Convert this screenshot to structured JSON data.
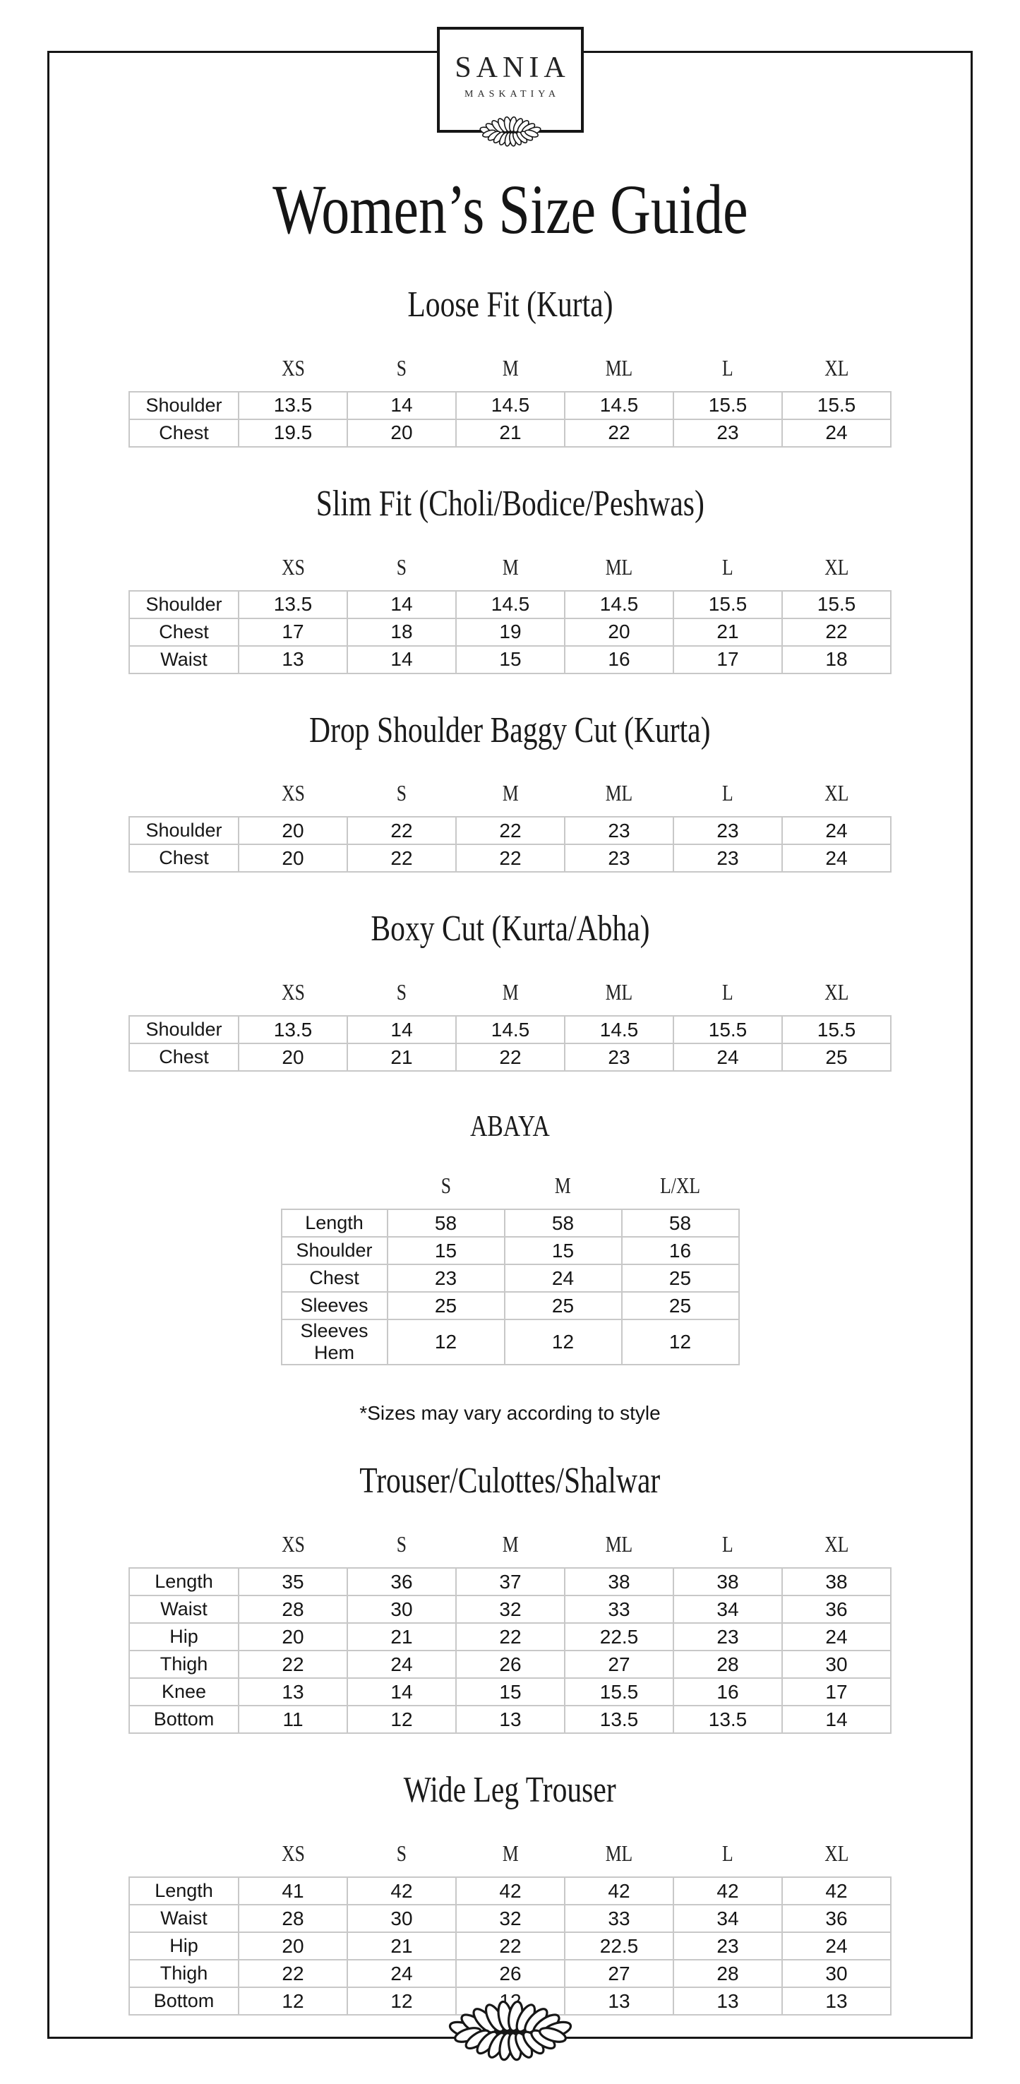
{
  "brand": {
    "name": "SANIA",
    "subname": "MASKATIYA"
  },
  "page_title": "Women’s Size Guide",
  "note": "*Sizes may vary according to style",
  "icons": {
    "logo_ornament": "laurel-leaves-ornament",
    "footer_ornament": "laurel-leaves-ornament"
  },
  "sections": [
    {
      "title": "Loose Fit (Kurta)",
      "sizes": [
        "XS",
        "S",
        "M",
        "ML",
        "L",
        "XL"
      ],
      "rows": [
        {
          "label": "Shoulder",
          "values": [
            "13.5",
            "14",
            "14.5",
            "14.5",
            "15.5",
            "15.5"
          ]
        },
        {
          "label": "Chest",
          "values": [
            "19.5",
            "20",
            "21",
            "22",
            "23",
            "24"
          ]
        }
      ]
    },
    {
      "title": "Slim Fit (Choli/Bodice/Peshwas)",
      "sizes": [
        "XS",
        "S",
        "M",
        "ML",
        "L",
        "XL"
      ],
      "rows": [
        {
          "label": "Shoulder",
          "values": [
            "13.5",
            "14",
            "14.5",
            "14.5",
            "15.5",
            "15.5"
          ]
        },
        {
          "label": "Chest",
          "values": [
            "17",
            "18",
            "19",
            "20",
            "21",
            "22"
          ]
        },
        {
          "label": "Waist",
          "values": [
            "13",
            "14",
            "15",
            "16",
            "17",
            "18"
          ]
        }
      ]
    },
    {
      "title": "Drop Shoulder Baggy Cut (Kurta)",
      "sizes": [
        "XS",
        "S",
        "M",
        "ML",
        "L",
        "XL"
      ],
      "rows": [
        {
          "label": "Shoulder",
          "values": [
            "20",
            "22",
            "22",
            "23",
            "23",
            "24"
          ]
        },
        {
          "label": "Chest",
          "values": [
            "20",
            "22",
            "22",
            "23",
            "23",
            "24"
          ]
        }
      ]
    },
    {
      "title": "Boxy Cut (Kurta/Abha)",
      "sizes": [
        "XS",
        "S",
        "M",
        "ML",
        "L",
        "XL"
      ],
      "rows": [
        {
          "label": "Shoulder",
          "values": [
            "13.5",
            "14",
            "14.5",
            "14.5",
            "15.5",
            "15.5"
          ]
        },
        {
          "label": "Chest",
          "values": [
            "20",
            "21",
            "22",
            "23",
            "24",
            "25"
          ]
        }
      ]
    },
    {
      "title": "ABAYA",
      "small_title": true,
      "note_after": true,
      "sizes": [
        "S",
        "M",
        "L/XL"
      ],
      "rows": [
        {
          "label": "Length",
          "values": [
            "58",
            "58",
            "58"
          ]
        },
        {
          "label": "Shoulder",
          "values": [
            "15",
            "15",
            "16"
          ]
        },
        {
          "label": "Chest",
          "values": [
            "23",
            "24",
            "25"
          ]
        },
        {
          "label": "Sleeves",
          "values": [
            "25",
            "25",
            "25"
          ]
        },
        {
          "label": "Sleeves Hem",
          "values": [
            "12",
            "12",
            "12"
          ]
        }
      ]
    },
    {
      "title": "Trouser/Culottes/Shalwar",
      "sizes": [
        "XS",
        "S",
        "M",
        "ML",
        "L",
        "XL"
      ],
      "rows": [
        {
          "label": "Length",
          "values": [
            "35",
            "36",
            "37",
            "38",
            "38",
            "38"
          ]
        },
        {
          "label": "Waist",
          "values": [
            "28",
            "30",
            "32",
            "33",
            "34",
            "36"
          ]
        },
        {
          "label": "Hip",
          "values": [
            "20",
            "21",
            "22",
            "22.5",
            "23",
            "24"
          ]
        },
        {
          "label": "Thigh",
          "values": [
            "22",
            "24",
            "26",
            "27",
            "28",
            "30"
          ]
        },
        {
          "label": "Knee",
          "values": [
            "13",
            "14",
            "15",
            "15.5",
            "16",
            "17"
          ]
        },
        {
          "label": "Bottom",
          "values": [
            "11",
            "12",
            "13",
            "13.5",
            "13.5",
            "14"
          ]
        }
      ]
    },
    {
      "title": "Wide Leg Trouser",
      "sizes": [
        "XS",
        "S",
        "M",
        "ML",
        "L",
        "XL"
      ],
      "rows": [
        {
          "label": "Length",
          "values": [
            "41",
            "42",
            "42",
            "42",
            "42",
            "42"
          ]
        },
        {
          "label": "Waist",
          "values": [
            "28",
            "30",
            "32",
            "33",
            "34",
            "36"
          ]
        },
        {
          "label": "Hip",
          "values": [
            "20",
            "21",
            "22",
            "22.5",
            "23",
            "24"
          ]
        },
        {
          "label": "Thigh",
          "values": [
            "22",
            "24",
            "26",
            "27",
            "28",
            "30"
          ]
        },
        {
          "label": "Bottom",
          "values": [
            "12",
            "12",
            "12",
            "13",
            "13",
            "13"
          ]
        }
      ]
    }
  ]
}
